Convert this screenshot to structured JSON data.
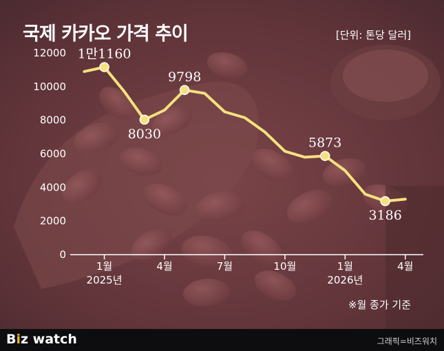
{
  "header": {
    "title": "국제 카카오 가격 추이",
    "unit": "[단위: 톤당 달러]"
  },
  "note": "※월 종가 기준",
  "footer": {
    "logo_b": "B",
    "logo_i": "i",
    "logo_rest": "z watch",
    "credit": "그래픽=비즈워치"
  },
  "colors": {
    "line": "#f7e17e",
    "marker_fill": "#f7e17e",
    "marker_stroke": "#ffffff",
    "background": "#6b3a40"
  },
  "chart_data": {
    "type": "line",
    "title": "국제 카카오 가격 추이",
    "ylabel": "",
    "xlabel": "",
    "ylim": [
      0,
      12000
    ],
    "yticks": [
      "0",
      "2000",
      "4000",
      "6000",
      "8000",
      "10000",
      "12000"
    ],
    "xticks": [
      {
        "label": "1월",
        "sub": "2025년",
        "x": 2
      },
      {
        "label": "4월",
        "sub": "",
        "x": 5
      },
      {
        "label": "7월",
        "sub": "",
        "x": 8
      },
      {
        "label": "10월",
        "sub": "",
        "x": 11
      },
      {
        "label": "1월",
        "sub": "2026년",
        "x": 14
      },
      {
        "label": "4월",
        "sub": "",
        "x": 17
      }
    ],
    "series": [
      {
        "name": "",
        "x": [
          1,
          2,
          3,
          4,
          5,
          6,
          7,
          8,
          9,
          10,
          11,
          12,
          13,
          14,
          15,
          16,
          17
        ],
        "values": [
          10900,
          11160,
          9700,
          8030,
          8600,
          9798,
          9600,
          8500,
          8150,
          7300,
          6150,
          5800,
          5873,
          5000,
          3600,
          3186,
          3300
        ]
      }
    ],
    "annotations": [
      {
        "index": 1,
        "label": "1만1160",
        "pos": "above"
      },
      {
        "index": 3,
        "label": "8030",
        "pos": "below"
      },
      {
        "index": 5,
        "label": "9798",
        "pos": "above"
      },
      {
        "index": 12,
        "label": "5873",
        "pos": "above"
      },
      {
        "index": 15,
        "label": "3186",
        "pos": "below"
      }
    ]
  }
}
